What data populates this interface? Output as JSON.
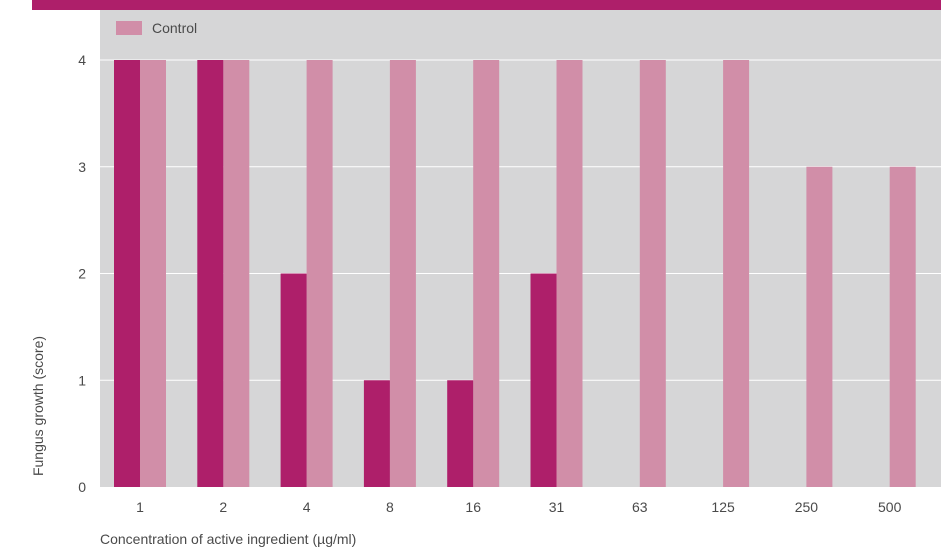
{
  "chart_data": {
    "type": "bar",
    "categories": [
      "1",
      "2",
      "4",
      "8",
      "16",
      "31",
      "63",
      "125",
      "250",
      "500"
    ],
    "series": [
      {
        "values": [
          4,
          4,
          2,
          1,
          1,
          2,
          0,
          0,
          0,
          0
        ],
        "color": "#ae1f6a"
      },
      {
        "name": "Control",
        "values": [
          4,
          4,
          4,
          4,
          4,
          4,
          4,
          4,
          3,
          3
        ],
        "color": "#d18ea8"
      }
    ],
    "xlabel": "Concentration of active ingredient (µg/ml)",
    "ylabel": "Fungus growth (score)",
    "ylim": [
      0,
      4
    ],
    "yticks": [
      "0",
      "1",
      "2",
      "3",
      "4"
    ],
    "grid": true,
    "legend": "top-left",
    "colors": {
      "plot_background": "#d6d6d7",
      "gridline": "#ffffff",
      "header_bar": "#ae1f6a",
      "text": "#4a4a4a"
    }
  }
}
